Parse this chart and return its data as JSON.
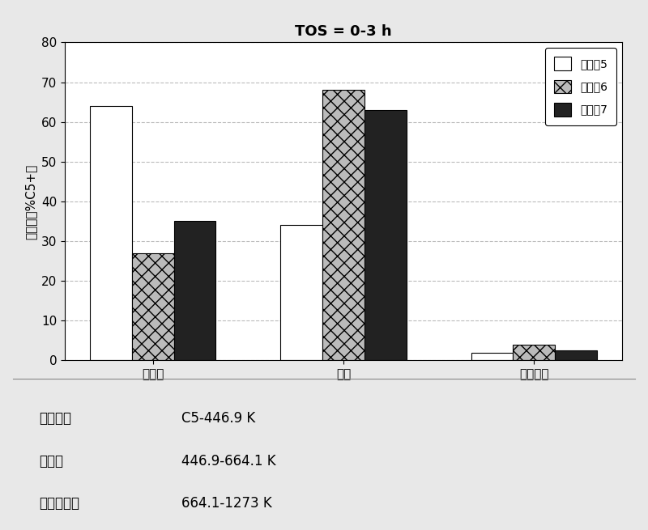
{
  "title": "TOS = 0-3 h",
  "categories": [
    "石脑油",
    "柴油",
    "重质馏分"
  ],
  "series": [
    {
      "label": "实施例5",
      "values": [
        64,
        34,
        2
      ],
      "color": "#ffffff",
      "edgecolor": "#000000",
      "hatch": ""
    },
    {
      "label": "实施例6",
      "values": [
        27,
        68,
        4
      ],
      "color": "#bbbbbb",
      "edgecolor": "#000000",
      "hatch": "xx"
    },
    {
      "label": "实施例7",
      "values": [
        35,
        63,
        2.5
      ],
      "color": "#222222",
      "edgecolor": "#000000",
      "hatch": ""
    }
  ],
  "ylabel": "选择性（%C5+）",
  "ylim": [
    0,
    80
  ],
  "yticks": [
    0,
    10,
    20,
    30,
    40,
    50,
    60,
    70,
    80
  ],
  "footnote_labels": [
    "石脑油：",
    "柴油：",
    "重质馏分："
  ],
  "footnote_values": [
    "C5-446.9 K",
    "446.9-664.1 K",
    "664.1-1273 K"
  ],
  "background_color": "#e8e8e8",
  "plot_bg_color": "#ffffff",
  "grid_color": "#bbbbbb",
  "bar_width": 0.22,
  "title_fontsize": 13,
  "axis_fontsize": 11,
  "footnote_fontsize": 12
}
